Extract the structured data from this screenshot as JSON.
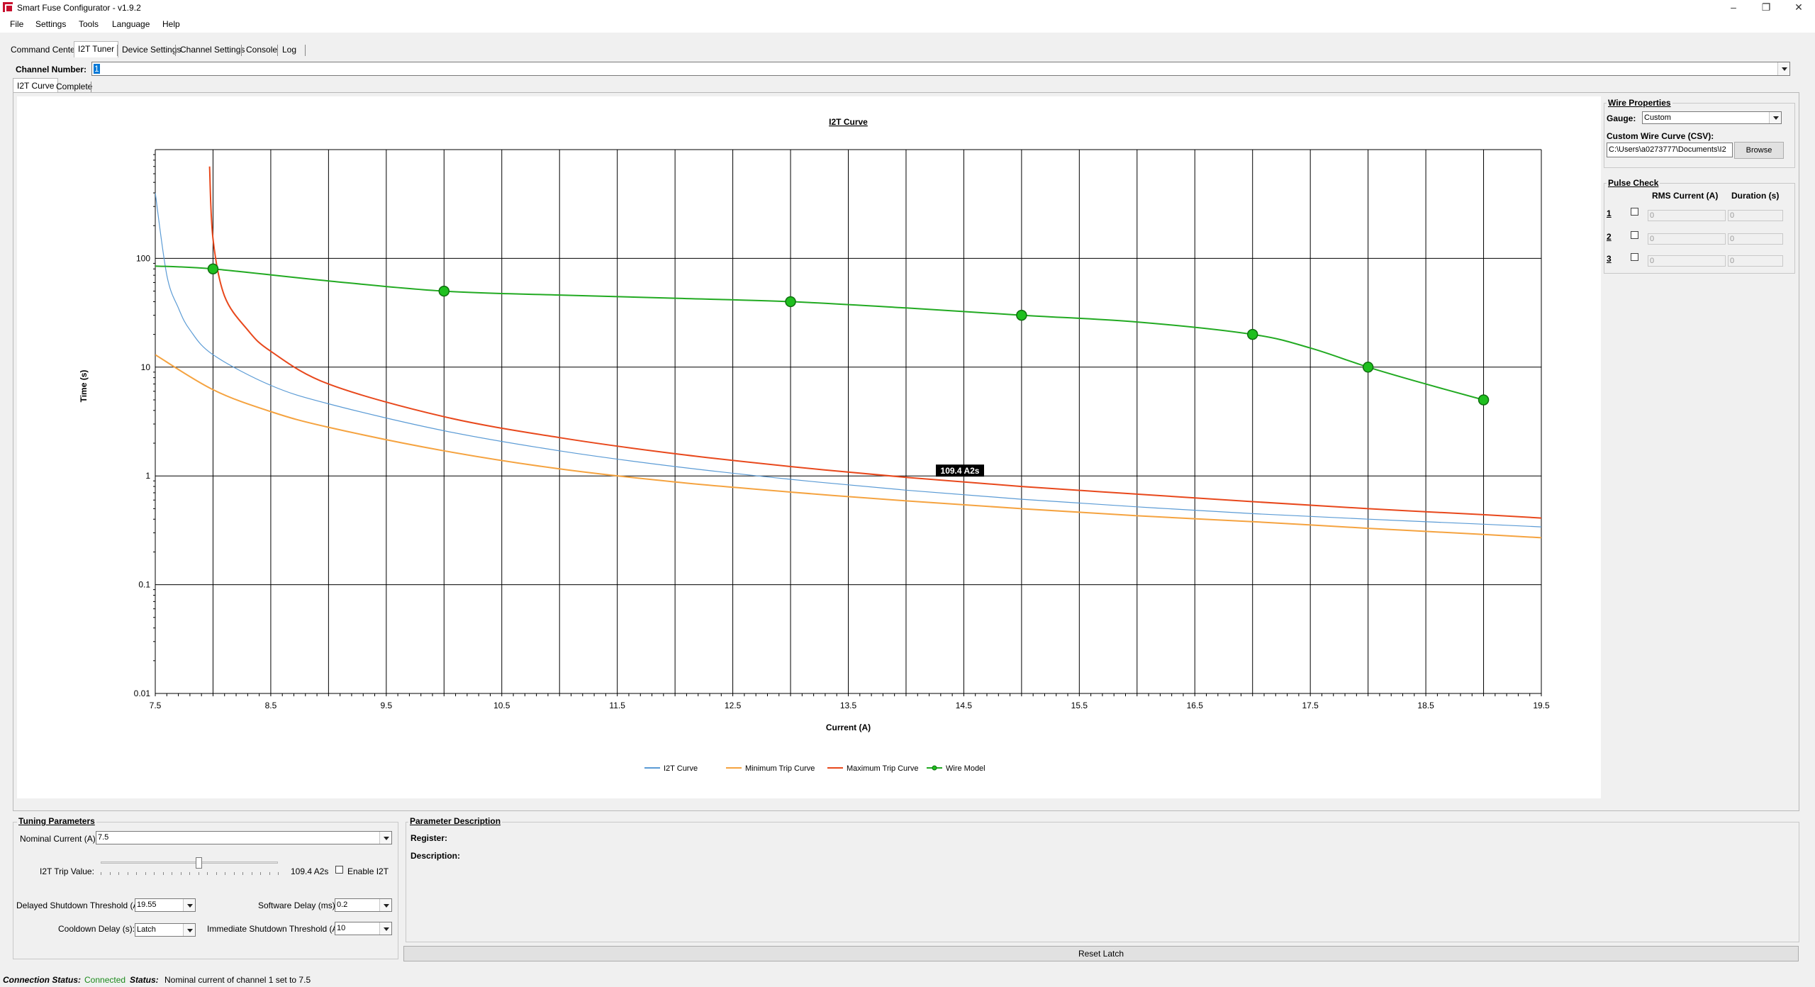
{
  "window": {
    "title": "Smart Fuse Configurator - v1.9.2"
  },
  "menu": [
    "File",
    "Settings",
    "Tools",
    "Language",
    "Help"
  ],
  "tabs": [
    "Command Center",
    "I2T Tuner",
    "Device Settings",
    "Channel Settings",
    "Console",
    "Log"
  ],
  "channel": {
    "label": "Channel Number:",
    "value": "1"
  },
  "subtabs": [
    "I2T Curve",
    "Complete"
  ],
  "chart_data": {
    "type": "line",
    "title": "I2T Curve",
    "xlabel": "Current (A)",
    "ylabel": "Time (s)",
    "xlim": [
      7.5,
      19.5
    ],
    "ylim": [
      0.01,
      1000
    ],
    "yscale": "log",
    "x_ticks": [
      "7.5",
      "8.5",
      "9.5",
      "10.5",
      "11.5",
      "12.5",
      "13.5",
      "14.5",
      "15.5",
      "16.5",
      "17.5",
      "18.5",
      "19.5"
    ],
    "y_ticks": [
      "0.01",
      "0.1",
      "1",
      "10",
      "100"
    ],
    "grid": true,
    "legend_position": "bottom-center",
    "annotation": "109.4 A2s",
    "series": [
      {
        "name": "I2T Curve",
        "color": "#5b9bd5",
        "x": [
          7.5,
          7.6,
          7.7,
          7.8,
          8,
          8.5,
          9,
          10,
          11,
          12,
          13,
          14,
          15,
          16,
          17,
          18,
          19,
          19.5
        ],
        "y": [
          400,
          70,
          35,
          22,
          13,
          6.8,
          4.6,
          2.6,
          1.7,
          1.22,
          0.93,
          0.74,
          0.61,
          0.52,
          0.45,
          0.4,
          0.36,
          0.34
        ]
      },
      {
        "name": "Minimum Trip Curve",
        "color": "#f5a340",
        "x": [
          7.5,
          8,
          8.5,
          9,
          10,
          11,
          12,
          13,
          14,
          15,
          16,
          17,
          18,
          19,
          19.5
        ],
        "y": [
          13,
          6.2,
          3.9,
          2.8,
          1.7,
          1.16,
          0.88,
          0.71,
          0.59,
          0.5,
          0.43,
          0.38,
          0.33,
          0.29,
          0.27
        ]
      },
      {
        "name": "Maximum Trip Curve",
        "color": "#e8481c",
        "x": [
          7.97,
          8,
          8.1,
          8.3,
          8.5,
          9,
          10,
          11,
          12,
          13,
          14,
          15,
          16,
          17,
          18,
          19,
          19.5
        ],
        "y": [
          700,
          150,
          45,
          22,
          14,
          7,
          3.5,
          2.25,
          1.6,
          1.22,
          0.97,
          0.8,
          0.68,
          0.58,
          0.5,
          0.44,
          0.41
        ]
      },
      {
        "name": "Wire Model",
        "color": "#22aa22",
        "x": [
          7.5,
          8,
          9,
          10,
          11,
          12,
          13,
          14,
          15,
          16,
          17,
          17.5,
          18,
          18.5,
          19
        ],
        "y": [
          85,
          80,
          62,
          50,
          46,
          43,
          40,
          35,
          30,
          26,
          20,
          15,
          10,
          7,
          5
        ],
        "markers_x": [
          8,
          10,
          13,
          15,
          17,
          18,
          19
        ],
        "markers_y": [
          80,
          50,
          40,
          30,
          20,
          10,
          5
        ]
      }
    ]
  },
  "wire": {
    "title": "Wire Properties",
    "gauge_label": "Gauge:",
    "gauge_value": "Custom",
    "csv_label": "Custom Wire Curve (CSV):",
    "csv_path": "C:\\Users\\a0273777\\Documents\\I2",
    "browse": "Browse"
  },
  "pulse": {
    "title": "Pulse Check",
    "col_rms": "RMS Current (A)",
    "col_dur": "Duration (s)",
    "rows": [
      {
        "n": "1",
        "rms": "0",
        "dur": "0"
      },
      {
        "n": "2",
        "rms": "0",
        "dur": "0"
      },
      {
        "n": "3",
        "rms": "0",
        "dur": "0"
      }
    ]
  },
  "tuning": {
    "title": "Tuning Parameters",
    "nominal_label": "Nominal Current (A):",
    "nominal_value": "7.5",
    "trip_label": "I2T Trip Value:",
    "trip_value": "109.4 A2s",
    "trip_fraction": 0.55,
    "enable_label": "Enable I2T",
    "delayed_label": "Delayed Shutdown Threshold (A",
    "delayed_value": "19.55",
    "software_label": "Software Delay (ms):",
    "software_value": "0.2",
    "cooldown_label": "Cooldown Delay (s):",
    "cooldown_value": "Latch",
    "immediate_label": "Immediate Shutdown Threshold (A):",
    "immediate_value": "10"
  },
  "description": {
    "title": "Parameter Description",
    "register_label": "Register:",
    "description_label": "Description:"
  },
  "reset_latch": "Reset Latch",
  "status": {
    "conn_label": "Connection Status:",
    "conn_value": "Connected",
    "conn_color": "#1a8a1a",
    "status_label": "Status:",
    "status_value": "Nominal current of channel 1 set to 7.5"
  }
}
